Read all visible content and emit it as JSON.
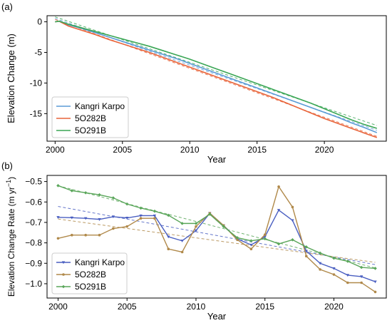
{
  "chart_data": [
    {
      "type": "line",
      "panel_label": "(a)",
      "xlabel": "Year",
      "ylabel": "Elevation Change (m)",
      "xlim": [
        1999.4,
        2024.6
      ],
      "ylim": [
        -19.5,
        1.0
      ],
      "xticks": [
        2000,
        2005,
        2010,
        2015,
        2020
      ],
      "yticks": [
        0,
        -5,
        -10,
        -15
      ],
      "grid": false,
      "legend": "bottom-left",
      "series": [
        {
          "name": "Kangri Karpo",
          "color": "#5b9bd5",
          "x": [
            2000.0,
            2000.3,
            2001,
            2002,
            2003,
            2004,
            2005,
            2006,
            2007,
            2008,
            2009,
            2010,
            2011,
            2012,
            2013,
            2014,
            2015,
            2016,
            2017,
            2018,
            2019,
            2020,
            2021,
            2022,
            2023,
            2023.9
          ],
          "values": [
            0.0,
            0.1,
            -0.5,
            -1.1,
            -1.8,
            -2.5,
            -3.2,
            -3.9,
            -4.6,
            -5.3,
            -6.0,
            -6.8,
            -7.6,
            -8.4,
            -9.2,
            -10.0,
            -10.8,
            -11.6,
            -12.4,
            -13.2,
            -14.0,
            -14.8,
            -15.6,
            -16.5,
            -17.3,
            -18.1
          ],
          "trend_style": "dashed"
        },
        {
          "name": "5O282B",
          "color": "#e8643a",
          "x": [
            2000.0,
            2000.3,
            2001,
            2002,
            2003,
            2004,
            2005,
            2006,
            2007,
            2008,
            2009,
            2010,
            2011,
            2012,
            2013,
            2014,
            2015,
            2016,
            2017,
            2018,
            2019,
            2020,
            2021,
            2022,
            2023,
            2023.9
          ],
          "values": [
            0.0,
            0.1,
            -0.7,
            -1.4,
            -2.1,
            -2.9,
            -3.6,
            -4.3,
            -5.0,
            -5.8,
            -6.6,
            -7.4,
            -8.2,
            -9.0,
            -9.8,
            -10.6,
            -11.4,
            -12.2,
            -13.1,
            -14.0,
            -14.9,
            -15.8,
            -16.6,
            -17.4,
            -18.2,
            -18.9
          ],
          "trend_style": "dashed"
        },
        {
          "name": "5O291B",
          "color": "#3aa655",
          "x": [
            2000.0,
            2000.3,
            2001,
            2002,
            2003,
            2004,
            2005,
            2006,
            2007,
            2008,
            2009,
            2010,
            2011,
            2012,
            2013,
            2014,
            2015,
            2016,
            2017,
            2018,
            2019,
            2020,
            2021,
            2022,
            2023,
            2023.9
          ],
          "values": [
            0.0,
            0.1,
            -0.4,
            -1.0,
            -1.6,
            -2.2,
            -2.8,
            -3.4,
            -4.0,
            -4.7,
            -5.4,
            -6.1,
            -6.9,
            -7.7,
            -8.5,
            -9.3,
            -10.1,
            -10.9,
            -11.7,
            -12.5,
            -13.3,
            -14.2,
            -15.1,
            -16.0,
            -16.8,
            -17.4
          ],
          "trend_style": "dashed"
        }
      ]
    },
    {
      "type": "line",
      "panel_label": "(b)",
      "xlabel": "Year",
      "ylabel": "Elevation Change Rate (m yr",
      "ylabel_sup": "−1",
      "ylabel_close": ")",
      "xlim": [
        1999.2,
        2023.8
      ],
      "ylim": [
        -1.07,
        -0.47
      ],
      "xticks": [
        2000,
        2005,
        2010,
        2015,
        2020
      ],
      "yticks": [
        -0.5,
        -0.6,
        -0.7,
        -0.8,
        -0.9,
        -1.0
      ],
      "ytick_labels": [
        "−0.5",
        "−0.6",
        "−0.7",
        "−0.8",
        "−0.9",
        "−1.0"
      ],
      "grid": false,
      "legend": "bottom-left",
      "x": [
        2000,
        2001,
        2002,
        2003,
        2004,
        2005,
        2006,
        2007,
        2008,
        2009,
        2010,
        2011,
        2012,
        2013,
        2014,
        2015,
        2016,
        2017,
        2018,
        2019,
        2020,
        2021,
        2022,
        2023
      ],
      "series": [
        {
          "name": "Kangri Karpo",
          "color": "#4a5fc1",
          "marker": "triangle",
          "values": [
            -0.675,
            -0.677,
            -0.68,
            -0.685,
            -0.672,
            -0.678,
            -0.667,
            -0.667,
            -0.77,
            -0.79,
            -0.74,
            -0.655,
            -0.715,
            -0.78,
            -0.81,
            -0.77,
            -0.64,
            -0.69,
            -0.84,
            -0.9,
            -0.925,
            -0.958,
            -0.965,
            -0.99
          ]
        },
        {
          "name": "5O282B",
          "color": "#b0894a",
          "marker": "circle",
          "values": [
            -0.778,
            -0.762,
            -0.762,
            -0.762,
            -0.73,
            -0.72,
            -0.68,
            -0.68,
            -0.83,
            -0.845,
            -0.72,
            -0.655,
            -0.715,
            -0.785,
            -0.83,
            -0.76,
            -0.525,
            -0.625,
            -0.865,
            -0.93,
            -0.955,
            -0.995,
            -0.995,
            -1.04
          ]
        },
        {
          "name": "5O291B",
          "color": "#5aa65a",
          "marker": "diamond",
          "values": [
            -0.52,
            -0.545,
            -0.555,
            -0.565,
            -0.58,
            -0.61,
            -0.63,
            -0.645,
            -0.665,
            -0.705,
            -0.705,
            -0.66,
            -0.72,
            -0.775,
            -0.79,
            -0.78,
            -0.805,
            -0.785,
            -0.82,
            -0.85,
            -0.875,
            -0.89,
            -0.92,
            -0.925
          ]
        }
      ]
    }
  ]
}
